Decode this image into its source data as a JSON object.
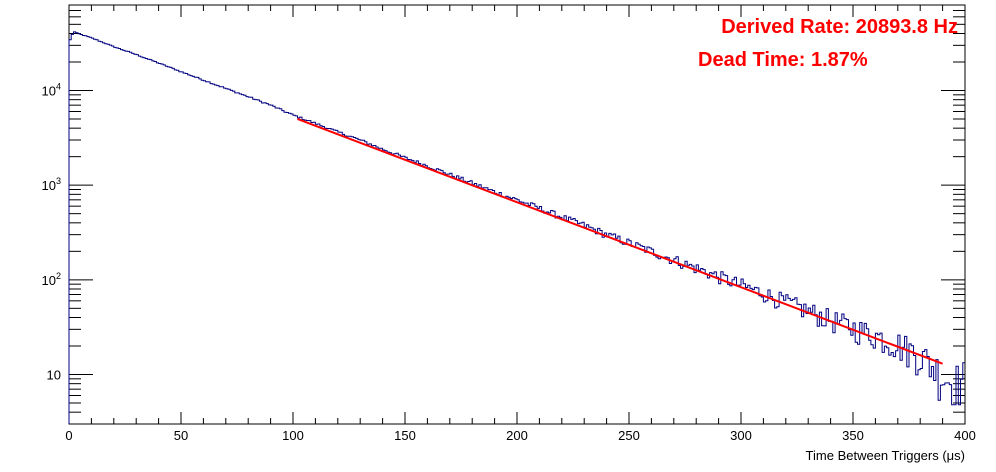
{
  "chart_data": {
    "type": "line",
    "xlabel": "Time Between Triggers (μs)",
    "ylabel": "",
    "xlim": [
      0,
      400
    ],
    "ylim": [
      3,
      80000
    ],
    "y_scale": "log",
    "grid": false,
    "x_ticks": [
      0,
      50,
      100,
      150,
      200,
      250,
      300,
      350,
      400
    ],
    "x_tick_labels": [
      "0",
      "50",
      "100",
      "150",
      "200",
      "250",
      "300",
      "350",
      "400"
    ],
    "y_ticks": [
      {
        "value": 10,
        "mantissa": "10",
        "exp": ""
      },
      {
        "value": 100,
        "mantissa": "10",
        "exp": "2"
      },
      {
        "value": 1000,
        "mantissa": "10",
        "exp": "3"
      },
      {
        "value": 10000,
        "mantissa": "10",
        "exp": "4"
      }
    ],
    "series": [
      {
        "kind": "histogram",
        "color": "#000080",
        "x": [
          0,
          2,
          4,
          10,
          20,
          30,
          40,
          50,
          60,
          70,
          80,
          90,
          100,
          110,
          120,
          130,
          140,
          150,
          160,
          170,
          180,
          190,
          200,
          210,
          220,
          230,
          240,
          250,
          260,
          270,
          280,
          290,
          300,
          310,
          320,
          330,
          340,
          350,
          360,
          370,
          380,
          390,
          395,
          400
        ],
        "y": [
          32000,
          42000,
          40000,
          36000,
          29000,
          24000,
          19500,
          15800,
          12900,
          10500,
          8600,
          7000,
          5500,
          4500,
          3650,
          3000,
          2400,
          1950,
          1600,
          1300,
          1050,
          850,
          700,
          570,
          460,
          375,
          300,
          245,
          200,
          163,
          133,
          108,
          88,
          72,
          58,
          47,
          38,
          31,
          26,
          21,
          16,
          10,
          8,
          9
        ]
      },
      {
        "kind": "fit",
        "color": "#ff0000",
        "x_range": [
          102,
          390
        ],
        "y_range": [
          5000,
          13
        ]
      }
    ],
    "annotations": [
      {
        "text": "Derived Rate: 20893.8 Hz",
        "color": "#ff0000"
      },
      {
        "text": "Dead Time: 1.87%",
        "color": "#ff0000"
      }
    ]
  }
}
